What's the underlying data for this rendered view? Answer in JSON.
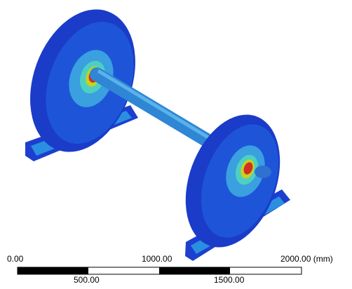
{
  "scale_bar": {
    "top_labels": [
      "0.00",
      "1000.00",
      "2000.00 (mm)"
    ],
    "bottom_labels": [
      "500.00",
      "1500.00"
    ]
  }
}
